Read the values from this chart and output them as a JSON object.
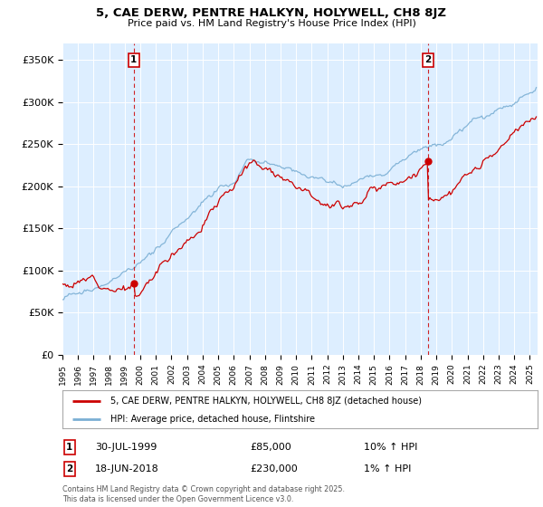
{
  "title": "5, CAE DERW, PENTRE HALKYN, HOLYWELL, CH8 8JZ",
  "subtitle": "Price paid vs. HM Land Registry's House Price Index (HPI)",
  "legend_line1": "5, CAE DERW, PENTRE HALKYN, HOLYWELL, CH8 8JZ (detached house)",
  "legend_line2": "HPI: Average price, detached house, Flintshire",
  "transaction1_date": "30-JUL-1999",
  "transaction1_price": "£85,000",
  "transaction1_hpi": "10% ↑ HPI",
  "transaction2_date": "18-JUN-2018",
  "transaction2_price": "£230,000",
  "transaction2_hpi": "1% ↑ HPI",
  "footer": "Contains HM Land Registry data © Crown copyright and database right 2025.\nThis data is licensed under the Open Government Licence v3.0.",
  "hpi_color": "#7bafd4",
  "price_color": "#cc0000",
  "background_color": "#ffffff",
  "chart_bg_color": "#ddeeff",
  "grid_color": "#ffffff",
  "ylim": [
    0,
    370000
  ],
  "yticks": [
    0,
    50000,
    100000,
    150000,
    200000,
    250000,
    300000,
    350000
  ],
  "start_year": 1995,
  "end_year": 2025,
  "transaction1_year": 1999.583,
  "transaction1_value": 85000,
  "transaction2_year": 2018.458,
  "transaction2_value": 230000
}
